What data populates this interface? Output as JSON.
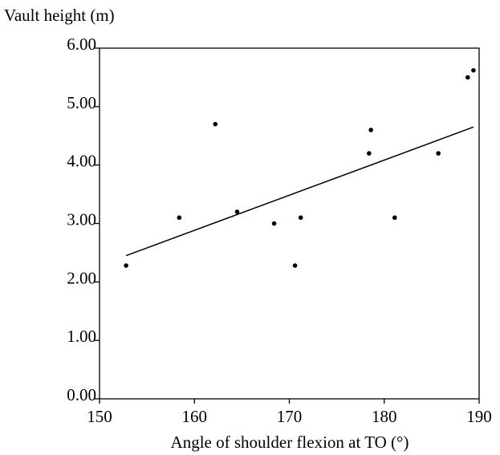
{
  "chart_data": {
    "type": "scatter",
    "xlabel": "Angle of shoulder flexion at TO (°)",
    "ylabel": "Vault height (m)",
    "xlim": [
      150,
      190
    ],
    "ylim": [
      0,
      6
    ],
    "x_ticks": [
      150,
      160,
      170,
      180,
      190
    ],
    "y_ticks": [
      "0.00",
      "1.00",
      "2.00",
      "3.00",
      "4.00",
      "5.00",
      "6.00"
    ],
    "grid": false,
    "legend": "none",
    "points": [
      {
        "x": 152.8,
        "y": 2.28
      },
      {
        "x": 158.4,
        "y": 3.1
      },
      {
        "x": 162.2,
        "y": 4.7
      },
      {
        "x": 164.5,
        "y": 3.2
      },
      {
        "x": 168.4,
        "y": 3.0
      },
      {
        "x": 170.6,
        "y": 2.28
      },
      {
        "x": 171.2,
        "y": 3.1
      },
      {
        "x": 178.4,
        "y": 4.2
      },
      {
        "x": 178.6,
        "y": 4.6
      },
      {
        "x": 181.1,
        "y": 3.1
      },
      {
        "x": 185.7,
        "y": 4.2
      },
      {
        "x": 188.8,
        "y": 5.5
      },
      {
        "x": 189.4,
        "y": 5.62
      }
    ],
    "trendline": {
      "x": [
        152.8,
        189.4
      ],
      "y": [
        2.45,
        4.65
      ]
    },
    "colors": {
      "axis": "#000000",
      "points": "#000000",
      "trendline": "#000000"
    }
  }
}
